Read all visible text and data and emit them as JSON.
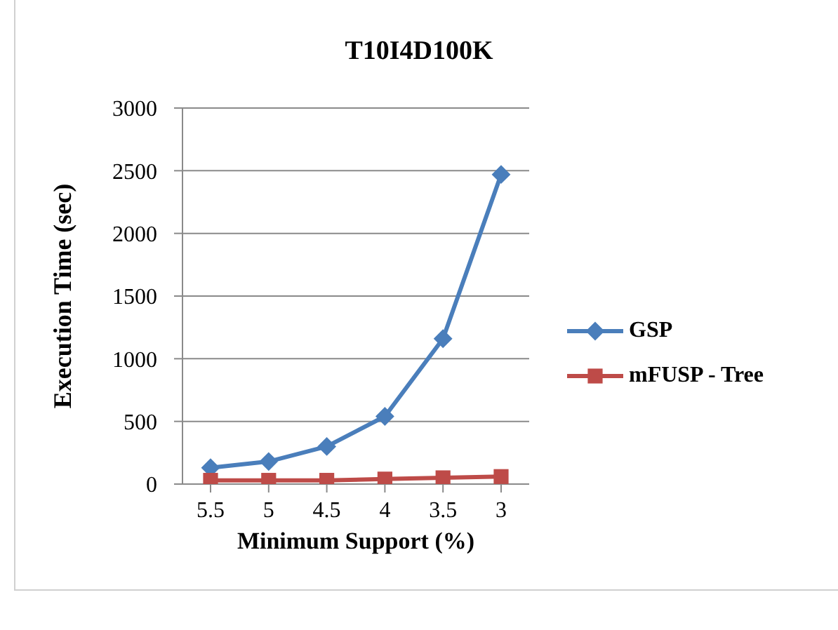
{
  "chart_data": {
    "type": "line",
    "title": "T10I4D100K",
    "xlabel": "Minimum Support (%)",
    "ylabel": "Execution Time (sec)",
    "categories": [
      "5.5",
      "5",
      "4.5",
      "4",
      "3.5",
      "3"
    ],
    "series": [
      {
        "name": "GSP",
        "color": "#4a7ebb",
        "marker": "diamond",
        "values": [
          130,
          180,
          300,
          540,
          1160,
          2470
        ]
      },
      {
        "name": "mFUSP - Tree",
        "color": "#be4b48",
        "marker": "square",
        "values": [
          30,
          30,
          30,
          40,
          50,
          60
        ]
      }
    ],
    "ylim": [
      0,
      3000
    ],
    "yticks": [
      0,
      500,
      1000,
      1500,
      2000,
      2500,
      3000
    ],
    "grid": "y",
    "legend": "right"
  }
}
